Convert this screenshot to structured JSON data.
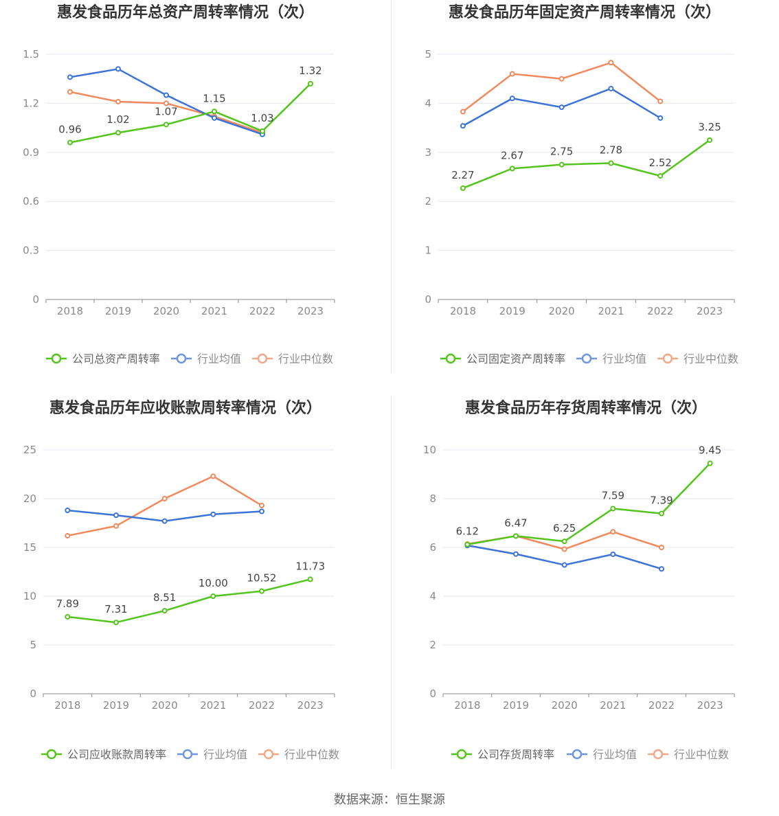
{
  "colors": {
    "company": "#52c41a",
    "industry_avg": "#3b73d9",
    "industry_median": "#f08a5d",
    "grid": "#e4e7ef",
    "axis": "#888888"
  },
  "source": "数据来源：恒生聚源",
  "chart_data": [
    {
      "type": "line",
      "title": "惠发食品历年总资产周转率情况（次）",
      "categories": [
        "2018",
        "2019",
        "2020",
        "2021",
        "2022",
        "2023"
      ],
      "ylim": [
        0,
        1.5
      ],
      "yticks": [
        "0",
        "0.3",
        "0.6",
        "0.9",
        "1.2",
        "1.5"
      ],
      "ytick_values": [
        0,
        0.3,
        0.6,
        0.9,
        1.2,
        1.5
      ],
      "legend_position": "bottom",
      "series": [
        {
          "name": "公司总资产周转率",
          "role": "company",
          "values": [
            0.96,
            1.02,
            1.07,
            1.15,
            1.03,
            1.32
          ],
          "labels": [
            "0.96",
            "1.02",
            "1.07",
            "1.15",
            "1.03",
            "1.32"
          ]
        },
        {
          "name": "行业均值",
          "role": "industry_avg",
          "values": [
            1.36,
            1.41,
            1.25,
            1.11,
            1.01,
            null
          ]
        },
        {
          "name": "行业中位数",
          "role": "industry_median",
          "values": [
            1.27,
            1.21,
            1.2,
            1.12,
            1.02,
            null
          ]
        }
      ]
    },
    {
      "type": "line",
      "title": "惠发食品历年固定资产周转率情况（次）",
      "categories": [
        "2018",
        "2019",
        "2020",
        "2021",
        "2022",
        "2023"
      ],
      "ylim": [
        0,
        5
      ],
      "yticks": [
        "0",
        "1",
        "2",
        "3",
        "4",
        "5"
      ],
      "ytick_values": [
        0,
        1,
        2,
        3,
        4,
        5
      ],
      "legend_position": "bottom",
      "series": [
        {
          "name": "公司固定资产周转率",
          "role": "company",
          "values": [
            2.27,
            2.67,
            2.75,
            2.78,
            2.52,
            3.25
          ],
          "labels": [
            "2.27",
            "2.67",
            "2.75",
            "2.78",
            "2.52",
            "3.25"
          ]
        },
        {
          "name": "行业均值",
          "role": "industry_avg",
          "values": [
            3.54,
            4.1,
            3.92,
            4.3,
            3.7,
            null
          ]
        },
        {
          "name": "行业中位数",
          "role": "industry_median",
          "values": [
            3.83,
            4.6,
            4.5,
            4.83,
            4.04,
            null
          ]
        }
      ]
    },
    {
      "type": "line",
      "title": "惠发食品历年应收账款周转率情况（次）",
      "categories": [
        "2018",
        "2019",
        "2020",
        "2021",
        "2022",
        "2023"
      ],
      "ylim": [
        0,
        25
      ],
      "yticks": [
        "0",
        "5",
        "10",
        "15",
        "20",
        "25"
      ],
      "ytick_values": [
        0,
        5,
        10,
        15,
        20,
        25
      ],
      "legend_position": "bottom",
      "series": [
        {
          "name": "公司应收账款周转率",
          "role": "company",
          "values": [
            7.89,
            7.31,
            8.51,
            10.0,
            10.52,
            11.73
          ],
          "labels": [
            "7.89",
            "7.31",
            "8.51",
            "10.00",
            "10.52",
            "11.73"
          ]
        },
        {
          "name": "行业均值",
          "role": "industry_avg",
          "values": [
            18.8,
            18.3,
            17.7,
            18.4,
            18.7,
            null
          ]
        },
        {
          "name": "行业中位数",
          "role": "industry_median",
          "values": [
            16.2,
            17.2,
            20.0,
            22.3,
            19.3,
            null
          ]
        }
      ]
    },
    {
      "type": "line",
      "title": "惠发食品历年存货周转率情况（次）",
      "categories": [
        "2018",
        "2019",
        "2020",
        "2021",
        "2022",
        "2023"
      ],
      "ylim": [
        0,
        10
      ],
      "yticks": [
        "0",
        "2",
        "4",
        "6",
        "8",
        "10"
      ],
      "ytick_values": [
        0,
        2,
        4,
        6,
        8,
        10
      ],
      "legend_position": "bottom",
      "series": [
        {
          "name": "公司存货周转率",
          "role": "company",
          "values": [
            6.12,
            6.47,
            6.25,
            7.59,
            7.39,
            9.45
          ],
          "labels": [
            "6.12",
            "6.47",
            "6.25",
            "7.59",
            "7.39",
            "9.45"
          ]
        },
        {
          "name": "行业均值",
          "role": "industry_avg",
          "values": [
            6.08,
            5.73,
            5.28,
            5.72,
            5.12,
            null
          ]
        },
        {
          "name": "行业中位数",
          "role": "industry_median",
          "values": [
            6.14,
            6.47,
            5.93,
            6.64,
            6.0,
            null
          ]
        }
      ]
    }
  ]
}
